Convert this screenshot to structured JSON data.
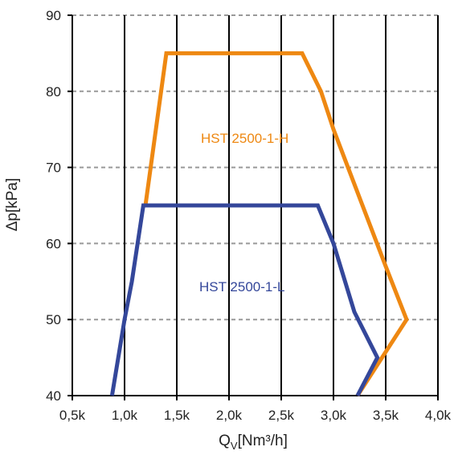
{
  "chart_data": {
    "type": "line",
    "title": "",
    "xlabel": "Q",
    "xlabel_sub": "V",
    "xlabel_unit": "[Nm³/h]",
    "ylabel": "Δp[kPa]",
    "xlim": [
      500,
      4000
    ],
    "ylim": [
      40,
      90
    ],
    "x_ticks": [
      500,
      1000,
      1500,
      2000,
      2500,
      3000,
      3500,
      4000
    ],
    "x_tick_labels": [
      "0,5k",
      "1,0k",
      "1,5k",
      "2,0k",
      "2,5k",
      "3,0k",
      "3,5k",
      "4,0k"
    ],
    "y_ticks": [
      40,
      50,
      60,
      70,
      80,
      90
    ],
    "y_tick_labels": [
      "40",
      "50",
      "60",
      "70",
      "80",
      "90"
    ],
    "grid": {
      "vertical": "solid",
      "horizontal": "dashed"
    },
    "colors": {
      "vertical_grid": "#000000",
      "horizontal_grid": "#999999",
      "axis": "#000000"
    },
    "series": [
      {
        "name": "HST 2500-1-H",
        "color": "#EE8812",
        "points": [
          [
            1200,
            65
          ],
          [
            1400,
            85
          ],
          [
            2700,
            85
          ],
          [
            2880,
            80
          ],
          [
            3000,
            75
          ],
          [
            3500,
            57
          ],
          [
            3700,
            50
          ],
          [
            3230,
            40
          ]
        ]
      },
      {
        "name": "HST 2500-1-L",
        "color": "#34479A",
        "points": [
          [
            880,
            40
          ],
          [
            1000,
            50
          ],
          [
            1070,
            55
          ],
          [
            1180,
            65
          ],
          [
            2850,
            65
          ],
          [
            3000,
            60
          ],
          [
            3200,
            51
          ],
          [
            3420,
            45
          ],
          [
            3230,
            40
          ]
        ]
      }
    ]
  }
}
